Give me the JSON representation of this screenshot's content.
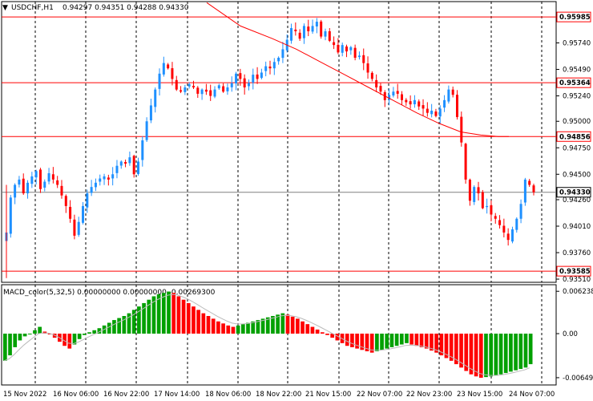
{
  "header": {
    "symbol": "USDCHF,H1",
    "ohlc": "0.94297 0.94351 0.94288 0.94330",
    "indicator_label": "MACD_color(5,32,5) 0.00000000 0.00000000 -0.00269300"
  },
  "price_axis": {
    "ticks": [
      "0.95740",
      "0.95490",
      "0.95240",
      "0.95000",
      "0.94750",
      "0.94500",
      "0.94260",
      "0.94010",
      "0.93760",
      "0.93510"
    ]
  },
  "macd_axis": {
    "ticks": [
      "0.0062385",
      "0.00",
      "-0.006492"
    ]
  },
  "time_axis": {
    "labels": [
      "15 Nov 2022",
      "16 Nov 06:00",
      "16 Nov 22:00",
      "17 Nov 14:00",
      "18 Nov 06:00",
      "18 Nov 22:00",
      "21 Nov 15:00",
      "22 Nov 07:00",
      "22 Nov 23:00",
      "23 Nov 15:00",
      "24 Nov 07:00"
    ]
  },
  "horizontal_lines": [
    {
      "label": "0.95985",
      "value": 0.95985
    },
    {
      "label": "0.95364",
      "value": 0.95364
    },
    {
      "label": "0.94856",
      "value": 0.94856
    },
    {
      "label": "0.93585",
      "value": 0.93585
    }
  ],
  "current_price": {
    "label": "0.94330",
    "value": 0.9433
  },
  "colors": {
    "bull": "#1e90ff",
    "bear": "#ff0000",
    "hist_pos": "#00a000",
    "hist_neg": "#ff0000",
    "level_line": "#ff0000",
    "ma_line": "#ff0000",
    "price_line": "#808080"
  },
  "chart_data": {
    "type": "candlestick",
    "symbol": "USDCHF",
    "timeframe": "H1",
    "ylim": [
      0.9348,
      0.9613
    ],
    "close_path": [
      0.9395,
      0.9428,
      0.944,
      0.9445,
      0.9432,
      0.9442,
      0.9448,
      0.9453,
      0.9436,
      0.9443,
      0.9451,
      0.9445,
      0.944,
      0.943,
      0.942,
      0.9408,
      0.9392,
      0.9405,
      0.942,
      0.9432,
      0.9438,
      0.9442,
      0.9446,
      0.9448,
      0.9445,
      0.945,
      0.9458,
      0.9462,
      0.946,
      0.9466,
      0.945,
      0.9462,
      0.9482,
      0.95,
      0.9515,
      0.953,
      0.9545,
      0.9555,
      0.955,
      0.954,
      0.953,
      0.9528,
      0.9532,
      0.9535,
      0.9532,
      0.9526,
      0.953,
      0.9528,
      0.9524,
      0.953,
      0.9534,
      0.9528,
      0.9532,
      0.9536,
      0.9545,
      0.954,
      0.9532,
      0.9536,
      0.9544,
      0.954,
      0.9546,
      0.9552,
      0.955,
      0.9556,
      0.956,
      0.9568,
      0.9577,
      0.9588,
      0.9585,
      0.9578,
      0.959,
      0.9585,
      0.959,
      0.9594,
      0.958,
      0.9585,
      0.9576,
      0.9572,
      0.9565,
      0.9572,
      0.9566,
      0.957,
      0.956,
      0.9562,
      0.9555,
      0.9546,
      0.954,
      0.9532,
      0.9528,
      0.952,
      0.9525,
      0.9528,
      0.9526,
      0.952,
      0.9518,
      0.9516,
      0.952,
      0.9514,
      0.9512,
      0.9508,
      0.951,
      0.9505,
      0.9512,
      0.952,
      0.953,
      0.9525,
      0.9504,
      0.948,
      0.9445,
      0.9425,
      0.9438,
      0.9432,
      0.9418,
      0.942,
      0.9412,
      0.9408,
      0.9402,
      0.9395,
      0.9388,
      0.9398,
      0.9408,
      0.9422,
      0.9445,
      0.944,
      0.9433
    ],
    "ma_line": [
      [
        62,
        0.9612
      ],
      [
        90,
        0.956
      ],
      [
        130,
        0.953
      ],
      [
        170,
        0.95
      ],
      [
        195,
        0.9488
      ],
      [
        200,
        0.9487
      ]
    ],
    "macd_histogram": [
      -0.004,
      -0.0032,
      -0.002,
      -0.001,
      -0.0004,
      0.0,
      0.0005,
      0.001,
      0.0003,
      0.0,
      -0.0006,
      -0.0012,
      -0.0018,
      -0.0022,
      -0.0016,
      -0.0008,
      -0.0002,
      0.0002,
      0.0005,
      0.0008,
      0.0012,
      0.0016,
      0.002,
      0.0023,
      0.0026,
      0.003,
      0.0035,
      0.004,
      0.0045,
      0.005,
      0.0055,
      0.0058,
      0.006,
      0.0062,
      0.006,
      0.0055,
      0.005,
      0.0045,
      0.004,
      0.0035,
      0.003,
      0.0026,
      0.0022,
      0.0018,
      0.0015,
      0.0012,
      0.001,
      0.0012,
      0.0014,
      0.0016,
      0.0018,
      0.002,
      0.0022,
      0.0024,
      0.0026,
      0.0028,
      0.003,
      0.0028,
      0.0025,
      0.0022,
      0.0018,
      0.0014,
      0.001,
      0.0006,
      0.0002,
      -0.0002,
      -0.0006,
      -0.001,
      -0.0014,
      -0.0018,
      -0.002,
      -0.0022,
      -0.0024,
      -0.0026,
      -0.0028,
      -0.0026,
      -0.0024,
      -0.0022,
      -0.002,
      -0.0018,
      -0.0016,
      -0.0014,
      -0.0016,
      -0.0018,
      -0.002,
      -0.0022,
      -0.0025,
      -0.0028,
      -0.0032,
      -0.0036,
      -0.004,
      -0.0045,
      -0.005,
      -0.0055,
      -0.006,
      -0.0063,
      -0.0065,
      -0.0064,
      -0.0063,
      -0.0062,
      -0.006,
      -0.0058,
      -0.0056,
      -0.0054,
      -0.0052,
      -0.005,
      -0.0045
    ]
  }
}
